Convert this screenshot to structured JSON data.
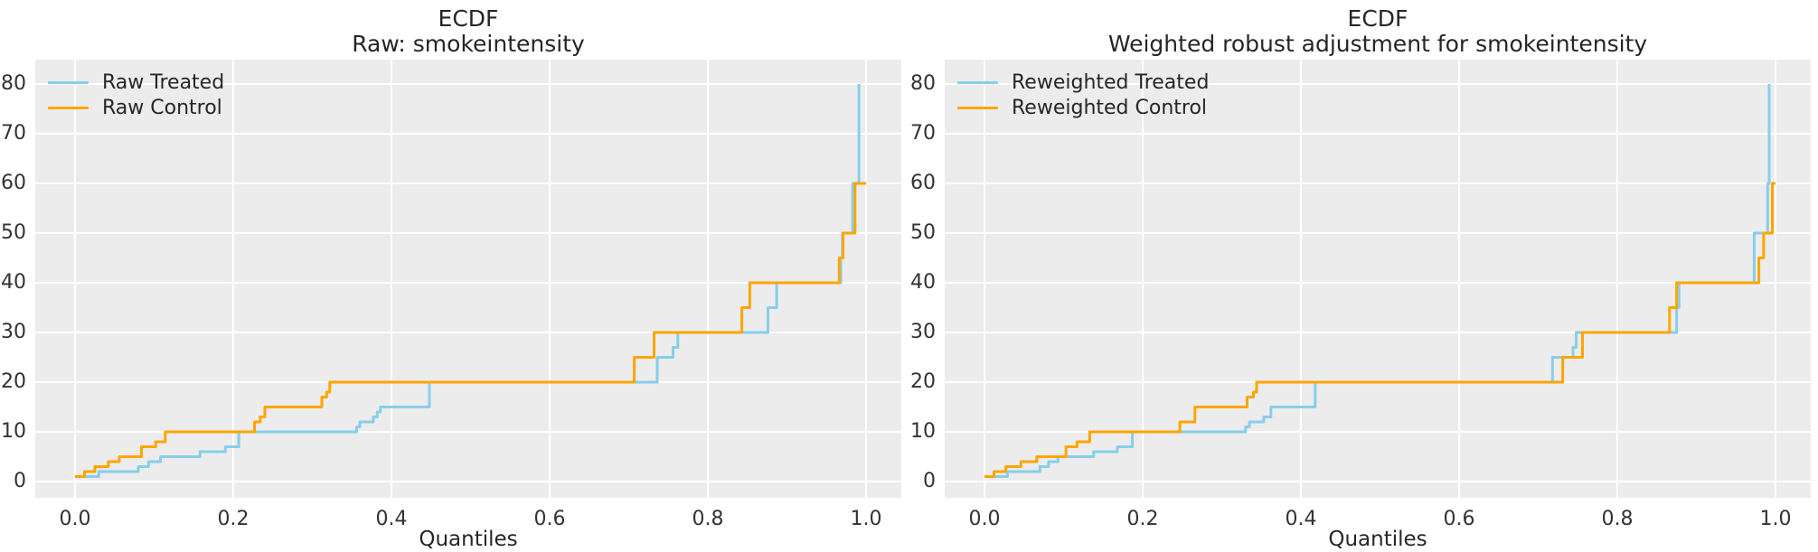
{
  "figure": {
    "background": "#ffffff",
    "plot_background": "#ececec",
    "grid_color": "#ffffff",
    "text_color": "#262626",
    "tick_color": "#333333"
  },
  "chart_data": [
    {
      "type": "line",
      "step": "post",
      "title": "ECDF",
      "subtitle": "Raw: smokeintensity",
      "xlabel": "Quantiles",
      "ylabel": "",
      "xlim": [
        0,
        1
      ],
      "ylim": [
        0,
        80
      ],
      "grid": true,
      "legend_position": "upper left",
      "xticks": [
        0.0,
        0.2,
        0.4,
        0.6,
        0.8,
        1.0
      ],
      "xtick_labels": [
        "0.0",
        "0.2",
        "0.4",
        "0.6",
        "0.8",
        "1.0"
      ],
      "yticks": [
        0,
        10,
        20,
        30,
        40,
        50,
        60,
        70,
        80
      ],
      "ytick_labels": [
        "0",
        "10",
        "20",
        "30",
        "40",
        "50",
        "60",
        "70",
        "80"
      ],
      "series": [
        {
          "name": "Raw Treated",
          "color": "#87CEEB",
          "points": [
            [
              0.0,
              1
            ],
            [
              0.03,
              2
            ],
            [
              0.08,
              3
            ],
            [
              0.093,
              4
            ],
            [
              0.108,
              5
            ],
            [
              0.158,
              6
            ],
            [
              0.19,
              7
            ],
            [
              0.207,
              10
            ],
            [
              0.356,
              11
            ],
            [
              0.36,
              12
            ],
            [
              0.377,
              13
            ],
            [
              0.382,
              14
            ],
            [
              0.386,
              15
            ],
            [
              0.448,
              20
            ],
            [
              0.736,
              25
            ],
            [
              0.756,
              27
            ],
            [
              0.762,
              30
            ],
            [
              0.876,
              35
            ],
            [
              0.887,
              40
            ],
            [
              0.968,
              45
            ],
            [
              0.97,
              50
            ],
            [
              0.983,
              60
            ],
            [
              0.991,
              80
            ]
          ]
        },
        {
          "name": "Raw Control",
          "color": "#FFA500",
          "points": [
            [
              0.0,
              1
            ],
            [
              0.012,
              2
            ],
            [
              0.025,
              3
            ],
            [
              0.042,
              4
            ],
            [
              0.056,
              5
            ],
            [
              0.084,
              7
            ],
            [
              0.102,
              8
            ],
            [
              0.114,
              10
            ],
            [
              0.227,
              12
            ],
            [
              0.234,
              13
            ],
            [
              0.24,
              15
            ],
            [
              0.312,
              17
            ],
            [
              0.318,
              18
            ],
            [
              0.322,
              20
            ],
            [
              0.707,
              25
            ],
            [
              0.732,
              30
            ],
            [
              0.843,
              35
            ],
            [
              0.853,
              40
            ],
            [
              0.966,
              45
            ],
            [
              0.971,
              50
            ],
            [
              0.986,
              60
            ],
            [
              1.0,
              60
            ]
          ]
        }
      ]
    },
    {
      "type": "line",
      "step": "post",
      "title": "ECDF",
      "subtitle": "Weighted robust adjustment for smokeintensity",
      "xlabel": "Quantiles",
      "ylabel": "",
      "xlim": [
        0,
        1
      ],
      "ylim": [
        0,
        80
      ],
      "grid": true,
      "legend_position": "upper left",
      "xticks": [
        0.0,
        0.2,
        0.4,
        0.6,
        0.8,
        1.0
      ],
      "xtick_labels": [
        "0.0",
        "0.2",
        "0.4",
        "0.6",
        "0.8",
        "1.0"
      ],
      "yticks": [
        0,
        10,
        20,
        30,
        40,
        50,
        60,
        70,
        80
      ],
      "ytick_labels": [
        "0",
        "10",
        "20",
        "30",
        "40",
        "50",
        "60",
        "70",
        "80"
      ],
      "series": [
        {
          "name": "Reweighted Treated",
          "color": "#87CEEB",
          "points": [
            [
              0.0,
              1
            ],
            [
              0.029,
              2
            ],
            [
              0.07,
              3
            ],
            [
              0.081,
              4
            ],
            [
              0.093,
              5
            ],
            [
              0.138,
              6
            ],
            [
              0.168,
              7
            ],
            [
              0.187,
              10
            ],
            [
              0.33,
              11
            ],
            [
              0.335,
              12
            ],
            [
              0.353,
              13
            ],
            [
              0.362,
              15
            ],
            [
              0.418,
              20
            ],
            [
              0.718,
              25
            ],
            [
              0.744,
              27
            ],
            [
              0.748,
              30
            ],
            [
              0.875,
              35
            ],
            [
              0.878,
              40
            ],
            [
              0.973,
              50
            ],
            [
              0.99,
              60
            ],
            [
              0.992,
              80
            ]
          ]
        },
        {
          "name": "Reweighted Control",
          "color": "#FFA500",
          "points": [
            [
              0.0,
              1
            ],
            [
              0.012,
              2
            ],
            [
              0.027,
              3
            ],
            [
              0.046,
              4
            ],
            [
              0.066,
              5
            ],
            [
              0.103,
              7
            ],
            [
              0.117,
              8
            ],
            [
              0.133,
              10
            ],
            [
              0.247,
              12
            ],
            [
              0.266,
              15
            ],
            [
              0.332,
              17
            ],
            [
              0.34,
              18
            ],
            [
              0.344,
              20
            ],
            [
              0.731,
              25
            ],
            [
              0.756,
              30
            ],
            [
              0.866,
              35
            ],
            [
              0.875,
              40
            ],
            [
              0.979,
              45
            ],
            [
              0.985,
              50
            ],
            [
              0.996,
              60
            ],
            [
              1.0,
              60
            ]
          ]
        }
      ]
    }
  ]
}
